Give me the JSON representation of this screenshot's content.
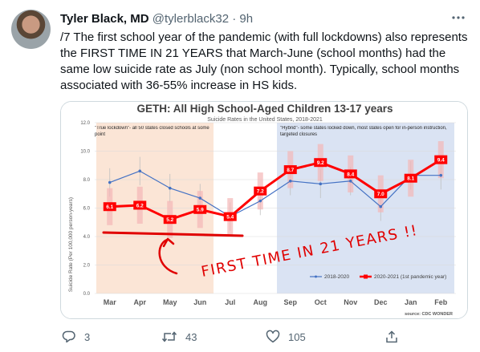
{
  "tweet": {
    "author_name": "Tyler Black, MD",
    "handle": "@tylerblack32",
    "separator": "·",
    "time": "9h",
    "text": "/7 The first school year of the pandemic (with full lockdowns) also represents the FIRST TIME IN 21 YEARS that March-June (school months) had the same low suicide rate as July (non school month). Typically, school months associated with 36-55% increase in HS kids."
  },
  "actions": {
    "reply_count": "3",
    "retweet_count": "43",
    "like_count": "105"
  },
  "icons": {
    "more": "more-dots-icon",
    "reply": "reply-icon",
    "retweet": "retweet-icon",
    "like": "heart-icon",
    "share": "share-icon"
  },
  "chart_data": {
    "type": "line",
    "title": "GETH: All High School-Aged Children 13-17 years",
    "subtitle": "Suicide Rates in the United States, 2018-2021",
    "ylabel": "Suicide Rate (Per 100,000 person-years)",
    "xlabel": "",
    "ylim": [
      0,
      12
    ],
    "yticks": [
      "0.0",
      "2.0",
      "4.0",
      "6.0",
      "8.0",
      "10.0",
      "12.0"
    ],
    "categories": [
      "Mar",
      "Apr",
      "May",
      "Jun",
      "Jul",
      "Aug",
      "Sep",
      "Oct",
      "Nov",
      "Dec",
      "Jan",
      "Feb"
    ],
    "series": [
      {
        "name": "2018-2020",
        "color": "#4472c4",
        "values": [
          7.8,
          8.6,
          7.4,
          6.7,
          5.4,
          6.5,
          7.9,
          7.7,
          7.9,
          6.1,
          8.3,
          8.3
        ]
      },
      {
        "name": "2020-2021 (1st pandemic year)",
        "color": "#ff0000",
        "values": [
          6.1,
          6.2,
          5.2,
          5.9,
          5.4,
          7.2,
          8.7,
          9.2,
          8.4,
          7.0,
          8.1,
          9.4
        ]
      }
    ],
    "data_labels": [
      "6.1",
      "6.2",
      "5.2",
      "5.9",
      "5.4",
      "7.2",
      "8.7",
      "9.2",
      "8.4",
      "7.0",
      "8.1",
      "9.4"
    ],
    "shaded_regions": [
      {
        "label": "\"True lockdown\"- all 50 states closed schools at some point",
        "from": "Mar",
        "to": "Jun",
        "color": "#fbe5d6"
      },
      {
        "label": "\"Hybrid\"- some states locked down, most states open for in-person instruction, targeted closures",
        "from": "Sep",
        "to": "Feb",
        "color": "#dae3f3"
      }
    ],
    "annotation": "FIRST TIME IN 21 YEARS !!",
    "annotation_color": "#e00000",
    "source": "source: CDC WONDER",
    "grid": true,
    "legend": "bottom-right"
  }
}
